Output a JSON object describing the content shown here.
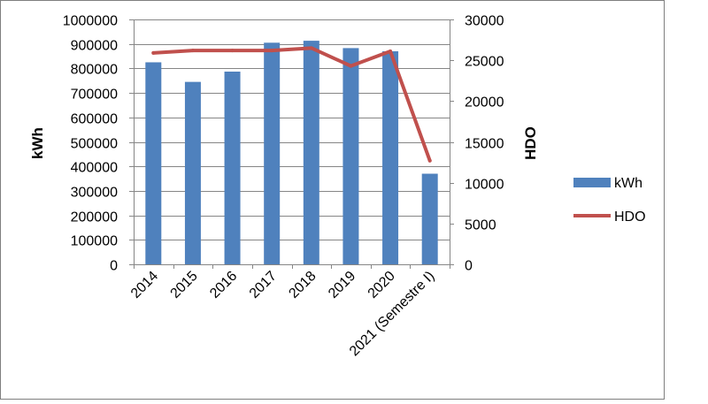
{
  "chart_data": {
    "type": "bar",
    "categories": [
      "2014",
      "2015",
      "2016",
      "2017",
      "2018",
      "2019",
      "2020",
      "2021 (Semestre I)"
    ],
    "series": [
      {
        "name": "kWh",
        "type": "bar",
        "axis": "left",
        "color": "#4f81bd",
        "values": [
          825000,
          745000,
          787000,
          905000,
          913000,
          883000,
          870000,
          370000
        ]
      },
      {
        "name": "HDO",
        "type": "line",
        "axis": "right",
        "color": "#c0504d",
        "values": [
          25900,
          26200,
          26200,
          26200,
          26500,
          24300,
          26100,
          12700
        ]
      }
    ],
    "ylabel": "kWh",
    "y2label": "HDO",
    "ylim": [
      0,
      1000000
    ],
    "y2lim": [
      0,
      30000
    ],
    "yticks": [
      "0",
      "100000",
      "200000",
      "300000",
      "400000",
      "500000",
      "600000",
      "700000",
      "800000",
      "900000",
      "1000000"
    ],
    "y2ticks": [
      "0",
      "5000",
      "10000",
      "15000",
      "20000",
      "25000",
      "30000"
    ],
    "grid": true,
    "legend": "right",
    "frame_color": "#7f7f7f",
    "grid_color": "#868686"
  }
}
